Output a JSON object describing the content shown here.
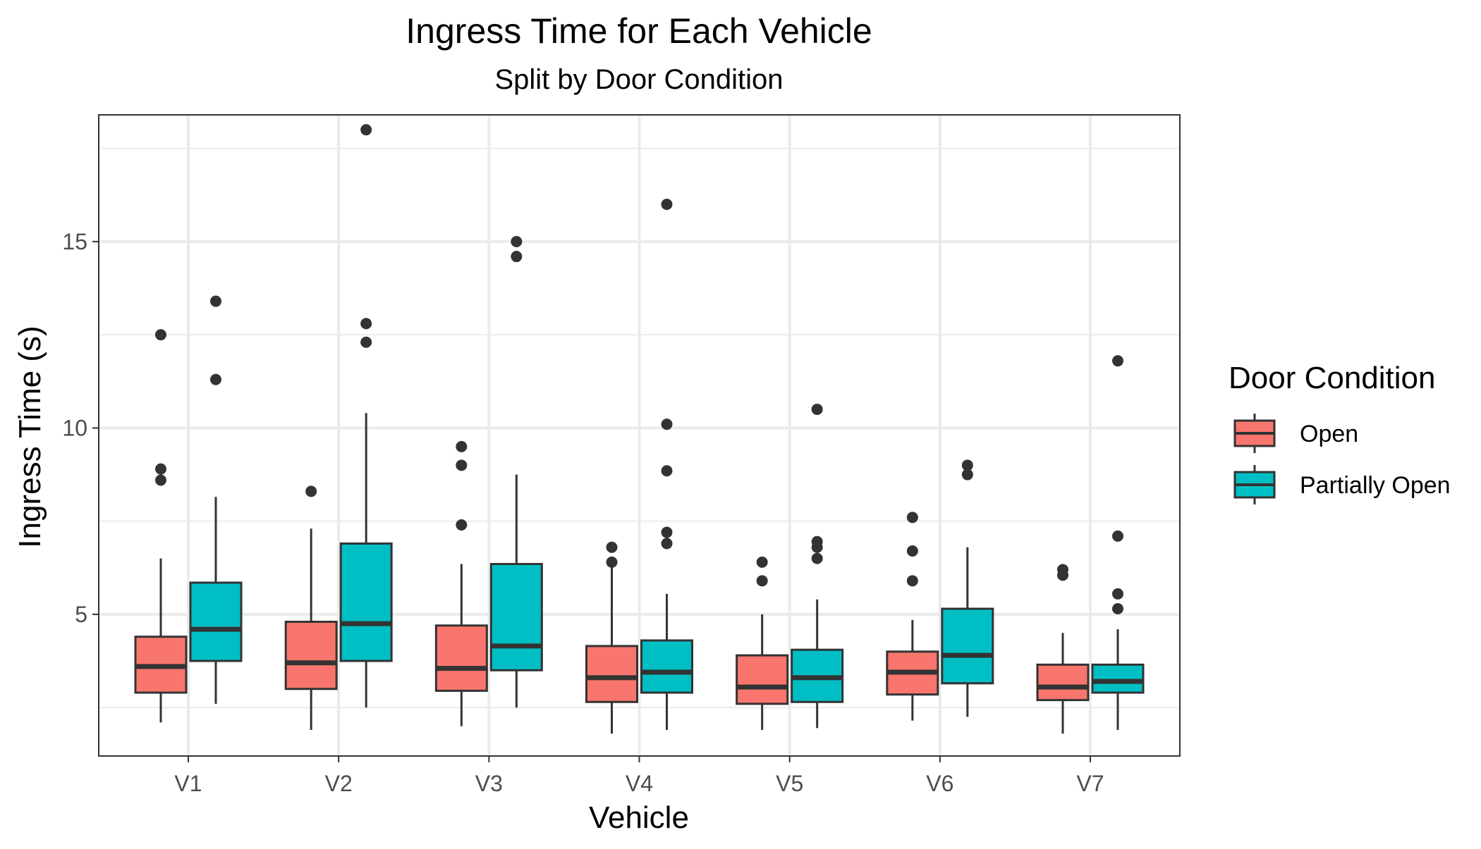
{
  "chart_data": {
    "type": "boxplot",
    "title": "Ingress Time for Each Vehicle",
    "subtitle": "Split by Door Condition",
    "xlabel": "Vehicle",
    "ylabel": "Ingress Time (s)",
    "categories": [
      "V1",
      "V2",
      "V3",
      "V4",
      "V5",
      "V6",
      "V7"
    ],
    "ylim": [
      1.2,
      18.4
    ],
    "yticks": [
      5,
      10,
      15
    ],
    "ytick_labels": [
      "5",
      "10",
      "15"
    ],
    "grid": true,
    "legend": {
      "title": "Door Condition",
      "position": "right"
    },
    "series": [
      {
        "name": "Open",
        "color": "#F8766D",
        "boxes": [
          {
            "category": "V1",
            "whisker_low": 2.1,
            "q1": 2.9,
            "median": 3.6,
            "q3": 4.4,
            "whisker_high": 6.5,
            "outliers": [
              8.6,
              8.9,
              12.5
            ]
          },
          {
            "category": "V2",
            "whisker_low": 1.9,
            "q1": 3.0,
            "median": 3.7,
            "q3": 4.8,
            "whisker_high": 7.3,
            "outliers": [
              8.3
            ]
          },
          {
            "category": "V3",
            "whisker_low": 2.0,
            "q1": 2.95,
            "median": 3.55,
            "q3": 4.7,
            "whisker_high": 6.35,
            "outliers": [
              7.4,
              9.0,
              9.5
            ]
          },
          {
            "category": "V4",
            "whisker_low": 1.8,
            "q1": 2.65,
            "median": 3.3,
            "q3": 4.15,
            "whisker_high": 6.3,
            "outliers": [
              6.4,
              6.8
            ]
          },
          {
            "category": "V5",
            "whisker_low": 1.9,
            "q1": 2.6,
            "median": 3.05,
            "q3": 3.9,
            "whisker_high": 5.0,
            "outliers": [
              5.9,
              6.4
            ]
          },
          {
            "category": "V6",
            "whisker_low": 2.15,
            "q1": 2.85,
            "median": 3.45,
            "q3": 4.0,
            "whisker_high": 4.85,
            "outliers": [
              5.9,
              6.7,
              7.6
            ]
          },
          {
            "category": "V7",
            "whisker_low": 1.8,
            "q1": 2.7,
            "median": 3.05,
            "q3": 3.65,
            "whisker_high": 4.5,
            "outliers": [
              6.05,
              6.2
            ]
          }
        ]
      },
      {
        "name": "Partially Open",
        "color": "#00BFC4",
        "boxes": [
          {
            "category": "V1",
            "whisker_low": 2.6,
            "q1": 3.75,
            "median": 4.6,
            "q3": 5.85,
            "whisker_high": 8.15,
            "outliers": [
              11.3,
              13.4
            ]
          },
          {
            "category": "V2",
            "whisker_low": 2.5,
            "q1": 3.75,
            "median": 4.75,
            "q3": 6.9,
            "whisker_high": 10.4,
            "outliers": [
              12.3,
              12.8,
              18.0
            ]
          },
          {
            "category": "V3",
            "whisker_low": 2.5,
            "q1": 3.5,
            "median": 4.15,
            "q3": 6.35,
            "whisker_high": 8.75,
            "outliers": [
              14.6,
              15.0
            ]
          },
          {
            "category": "V4",
            "whisker_low": 1.9,
            "q1": 2.9,
            "median": 3.45,
            "q3": 4.3,
            "whisker_high": 5.55,
            "outliers": [
              6.9,
              7.2,
              8.85,
              10.1,
              16.0
            ]
          },
          {
            "category": "V5",
            "whisker_low": 1.95,
            "q1": 2.65,
            "median": 3.3,
            "q3": 4.05,
            "whisker_high": 5.4,
            "outliers": [
              6.5,
              6.8,
              6.95,
              10.5
            ]
          },
          {
            "category": "V6",
            "whisker_low": 2.25,
            "q1": 3.15,
            "median": 3.9,
            "q3": 5.15,
            "whisker_high": 6.8,
            "outliers": [
              8.75,
              9.0
            ]
          },
          {
            "category": "V7",
            "whisker_low": 1.9,
            "q1": 2.9,
            "median": 3.2,
            "q3": 3.65,
            "whisker_high": 4.6,
            "outliers": [
              5.15,
              5.55,
              7.1,
              11.8
            ]
          }
        ]
      }
    ]
  }
}
